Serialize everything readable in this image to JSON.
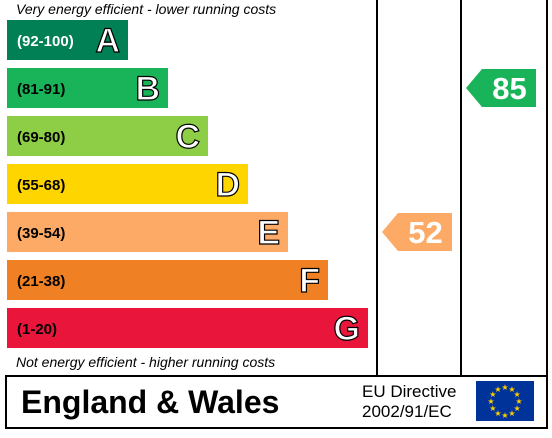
{
  "header_note": "Very energy efficient - lower running costs",
  "footer_note": "Not energy efficient - higher running costs",
  "footer": {
    "region": "England & Wales",
    "directive_line1": "EU Directive",
    "directive_line2": "2002/91/EC"
  },
  "flag_icon": "eu-flag-icon",
  "chart_data": {
    "type": "bar",
    "bands": [
      {
        "letter": "A",
        "range": "(92-100)",
        "color": "#008054"
      },
      {
        "letter": "B",
        "range": "(81-91)",
        "color": "#19b459"
      },
      {
        "letter": "C",
        "range": "(69-80)",
        "color": "#8dce46"
      },
      {
        "letter": "D",
        "range": "(55-68)",
        "color": "#ffd500"
      },
      {
        "letter": "E",
        "range": "(39-54)",
        "color": "#fcaa65"
      },
      {
        "letter": "F",
        "range": "(21-38)",
        "color": "#ef8023"
      },
      {
        "letter": "G",
        "range": "(1-20)",
        "color": "#e9153b"
      }
    ],
    "ratings": [
      {
        "column": "current",
        "value": 52,
        "band": "E",
        "color": "#fcaa65"
      },
      {
        "column": "potential",
        "value": 85,
        "band": "B",
        "color": "#19b459"
      }
    ]
  }
}
